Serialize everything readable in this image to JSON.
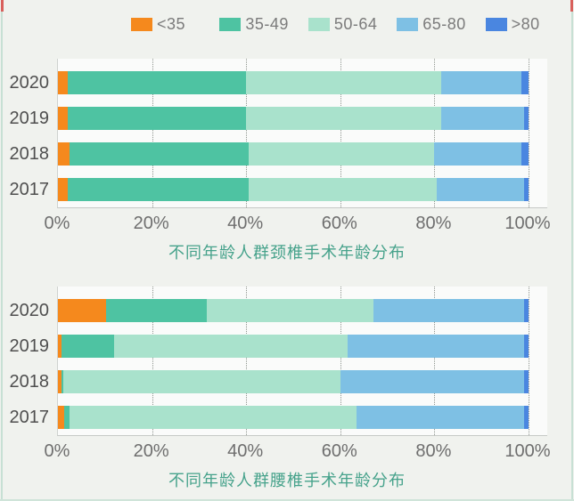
{
  "page": {
    "background_color": "#f0f2ee",
    "frame_color": "#c7e0d4",
    "corner_mark_color": "#d9605c",
    "title_accent_color": "#46a28b"
  },
  "legend": {
    "position": "top",
    "items": [
      {
        "label": "<35",
        "slug": "under-35",
        "color": "#f5891d"
      },
      {
        "label": "35-49",
        "slug": "age-35-49",
        "color": "#4ec3a2"
      },
      {
        "label": "50-64",
        "slug": "age-50-64",
        "color": "#a9e2cc"
      },
      {
        "label": "65-80",
        "slug": "age-65-80",
        "color": "#7ec0e4"
      },
      {
        "label": ">80",
        "slug": "over-80",
        "color": "#4a86e0"
      }
    ]
  },
  "chart_data": [
    {
      "type": "bar",
      "orientation": "horizontal",
      "stacked": true,
      "title": "不同年龄人群颈椎手术年龄分布",
      "categories": [
        "2020",
        "2019",
        "2018",
        "2017"
      ],
      "series": [
        {
          "name": "<35",
          "values": [
            2,
            2,
            2.5,
            2
          ]
        },
        {
          "name": "35-49",
          "values": [
            38,
            38,
            38,
            38.5
          ]
        },
        {
          "name": "50-64",
          "values": [
            41.5,
            41.5,
            39.5,
            40
          ]
        },
        {
          "name": "65-80",
          "values": [
            17,
            17.5,
            18.5,
            18.5
          ]
        },
        {
          "name": ">80",
          "values": [
            1.5,
            1,
            1.5,
            1
          ]
        }
      ],
      "x_ticks": [
        "0%",
        "20%",
        "40%",
        "60%",
        "80%",
        "100%"
      ],
      "xlim": [
        0,
        100
      ],
      "unit": "%",
      "grid": "dotted-vertical",
      "legend_position": "top"
    },
    {
      "type": "bar",
      "orientation": "horizontal",
      "stacked": true,
      "title": "不同年龄人群腰椎手术年龄分布",
      "categories": [
        "2020",
        "2019",
        "2018",
        "2017"
      ],
      "series": [
        {
          "name": "<35",
          "values": [
            10.3,
            0.8,
            0.8,
            1.4
          ]
        },
        {
          "name": "35-49",
          "values": [
            21.4,
            11.2,
            0.3,
            1.1
          ]
        },
        {
          "name": "50-64",
          "values": [
            35.3,
            49.5,
            58.9,
            61
          ]
        },
        {
          "name": "65-80",
          "values": [
            32,
            37.5,
            39,
            35.5
          ]
        },
        {
          "name": ">80",
          "values": [
            1,
            1,
            1,
            1
          ]
        }
      ],
      "x_ticks": [
        "0%",
        "20%",
        "40%",
        "60%",
        "80%",
        "100%"
      ],
      "xlim": [
        0,
        100
      ],
      "unit": "%",
      "grid": "dotted-vertical",
      "legend_position": "top"
    }
  ]
}
